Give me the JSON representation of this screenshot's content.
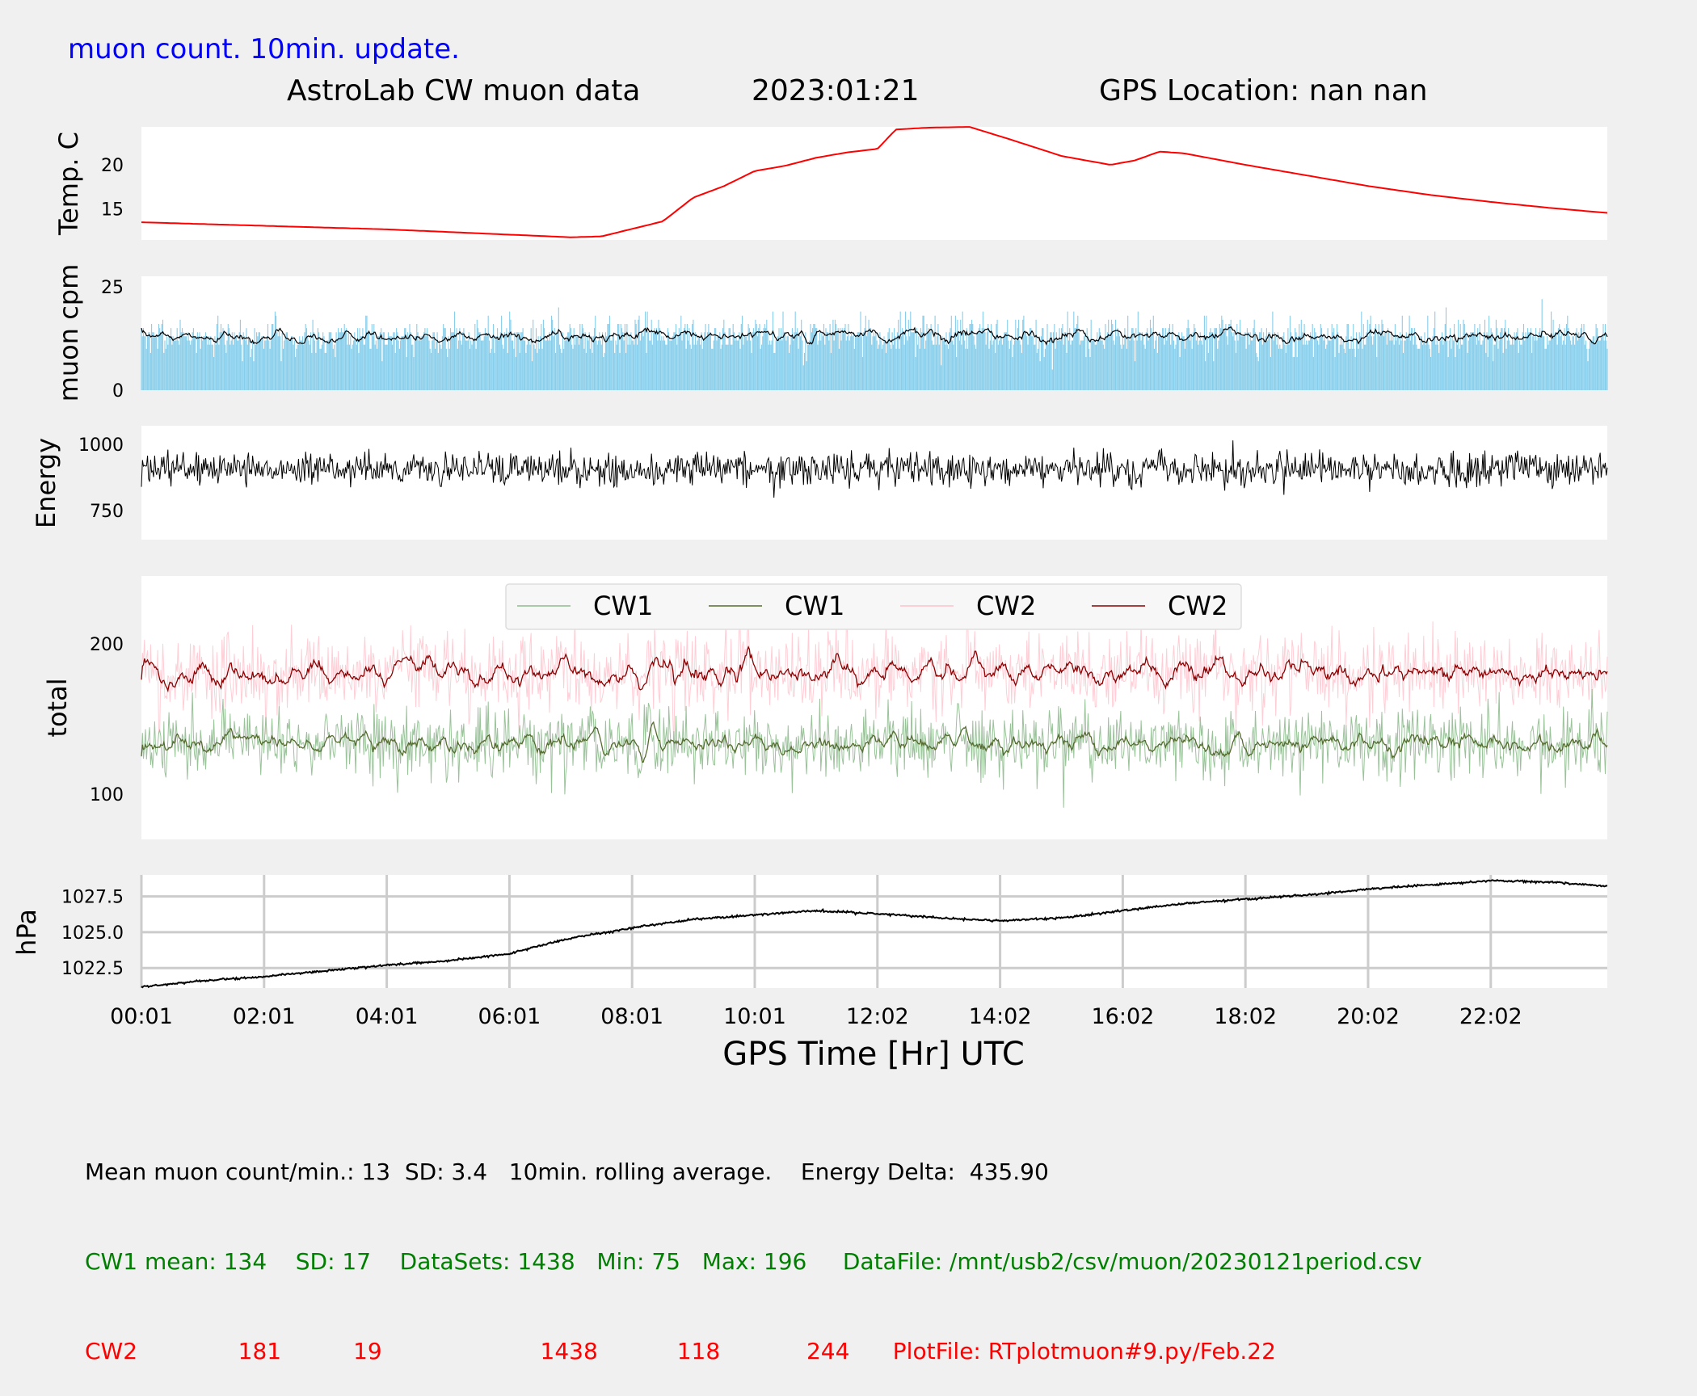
{
  "header": {
    "update_note": "muon count.  10min. update.",
    "title": "AstroLab CW muon data",
    "date": "2023:01:21",
    "gps_location": "GPS Location: nan   nan"
  },
  "colors": {
    "background": "#f0f0f0",
    "temperature": "#ff0000",
    "muon_bars": "#87ceeb",
    "muon_avg": "#000000",
    "energy": "#000000",
    "cw1_raw": "#8fbc8f",
    "cw1_avg": "#556b2f",
    "cw2_raw": "#ffc0cb",
    "cw2_avg": "#8b0000",
    "pressure": "#000000",
    "note": "#0000ff"
  },
  "chart_data": [
    {
      "type": "line",
      "name": "temperature",
      "ylabel": "Temp. C",
      "ylim": [
        11.5,
        24.3
      ],
      "yticks": [
        "15",
        "20"
      ],
      "x_hours": [
        0,
        1,
        2,
        3,
        4,
        5,
        6,
        7,
        7.5,
        8.5,
        9.0,
        9.5,
        10.0,
        10.5,
        11.0,
        11.5,
        12.0,
        12.3,
        12.8,
        13.5,
        14.2,
        15.0,
        15.8,
        16.2,
        16.6,
        17.0,
        18.0,
        19.0,
        20.0,
        21.0,
        22.0,
        23.0,
        24.0
      ],
      "values": [
        13.5,
        13.3,
        13.1,
        12.9,
        12.7,
        12.4,
        12.1,
        11.8,
        11.9,
        13.6,
        16.3,
        17.6,
        19.3,
        19.9,
        20.8,
        21.4,
        21.8,
        24.0,
        24.2,
        24.3,
        22.8,
        21.0,
        20.0,
        20.5,
        21.5,
        21.3,
        20.0,
        18.8,
        17.6,
        16.6,
        15.8,
        15.1,
        14.5
      ]
    },
    {
      "type": "bar",
      "name": "muon",
      "ylabel": "muon cpm",
      "ylim": [
        0,
        27.5
      ],
      "yticks": [
        "0",
        "25"
      ],
      "points": 1438,
      "mean": 13,
      "sd": 3.4,
      "rolling_average": "10min."
    },
    {
      "type": "line",
      "name": "energy",
      "ylabel": "Energy",
      "ylim": [
        640,
        1070
      ],
      "yticks": [
        "750",
        "1000"
      ],
      "typical_range": [
        800,
        1000
      ],
      "delta": 435.9
    },
    {
      "type": "line",
      "name": "total",
      "ylabel": "total",
      "ylim": [
        70,
        245
      ],
      "yticks": [
        "100",
        "200"
      ],
      "series": [
        {
          "name": "CW1",
          "style": "raw",
          "mean": 134,
          "sd": 17,
          "min": 75,
          "max": 196,
          "datasets": 1438
        },
        {
          "name": "CW1",
          "style": "rolling",
          "mean": 134
        },
        {
          "name": "CW2",
          "style": "raw",
          "mean": 181,
          "sd": 19,
          "min": 118,
          "max": 244,
          "datasets": 1438
        },
        {
          "name": "CW2",
          "style": "rolling",
          "mean": 181
        }
      ],
      "legend": [
        "CW1",
        "CW1",
        "CW2",
        "CW2"
      ],
      "legend_position": "top-center"
    },
    {
      "type": "line",
      "name": "pressure",
      "ylabel": "hPa",
      "ylim": [
        1021.1,
        1029.0
      ],
      "yticks": [
        "1022.5",
        "1025.0",
        "1027.5"
      ],
      "grid": true,
      "x_hours": [
        0,
        1,
        2,
        3,
        4,
        5,
        6,
        7,
        8,
        9,
        10,
        11,
        12,
        13,
        14,
        15,
        16,
        17,
        18,
        19,
        20,
        21,
        22,
        23,
        23.9
      ],
      "values": [
        1021.2,
        1021.6,
        1021.9,
        1022.3,
        1022.7,
        1023.0,
        1023.5,
        1024.6,
        1025.3,
        1025.9,
        1026.2,
        1026.5,
        1026.3,
        1026.0,
        1025.8,
        1026.0,
        1026.5,
        1027.0,
        1027.3,
        1027.6,
        1028.0,
        1028.3,
        1028.6,
        1028.5,
        1028.2
      ]
    }
  ],
  "x_axis": {
    "label": "GPS Time  [Hr] UTC",
    "ticks": [
      "00:01",
      "02:01",
      "04:01",
      "06:01",
      "08:01",
      "10:01",
      "12:02",
      "14:02",
      "16:02",
      "18:02",
      "20:02",
      "22:02"
    ],
    "tick_hours": [
      0,
      2,
      4,
      6,
      8,
      10,
      12,
      14,
      16,
      18,
      20,
      22
    ],
    "range_hours": [
      0,
      23.9
    ]
  },
  "footer": {
    "line1": "Mean muon count/min.: 13  SD: 3.4   10min. rolling average.    Energy Delta:  435.90",
    "line2": "CW1 mean: 134    SD: 17    DataSets: 1438   Min: 75   Max: 196     DataFile: /mnt/usb2/csv/muon/20230121period.csv",
    "line3": "CW2              181          19                      1438           118            244      PlotFile: RTplotmuon#9.py/Feb.22"
  }
}
